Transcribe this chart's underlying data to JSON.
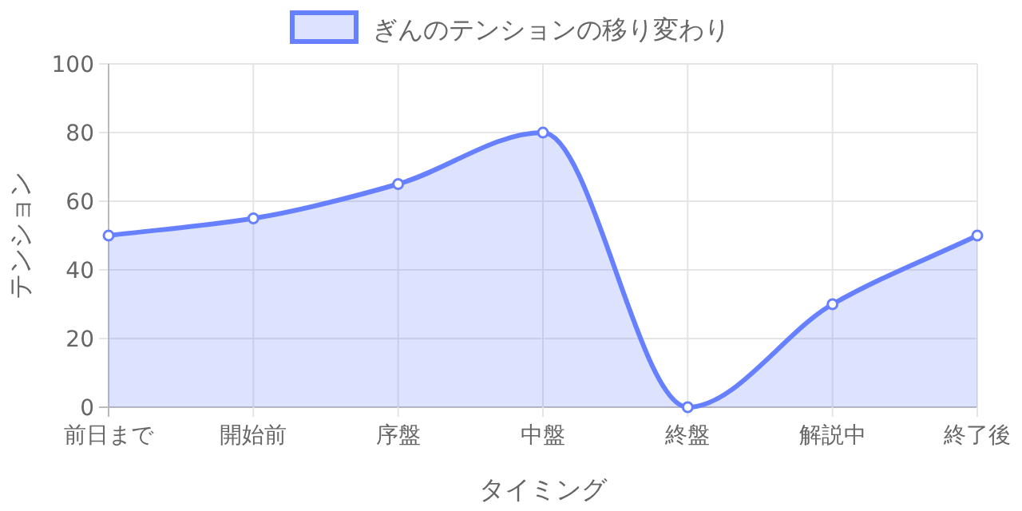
{
  "chart_data": {
    "type": "area",
    "xlabel": "タイミング",
    "ylabel": "テンション",
    "categories": [
      "前日まで",
      "開始前",
      "序盤",
      "中盤",
      "終盤",
      "解説中",
      "終了後"
    ],
    "series": [
      {
        "name": "ぎんのテンションの移り変わり",
        "color": "#6680ff",
        "values": [
          50,
          55,
          65,
          80,
          0,
          30,
          50
        ]
      }
    ],
    "ylim": [
      0,
      100
    ],
    "yticks": [
      0,
      20,
      40,
      60,
      80,
      100
    ],
    "grid": true,
    "legend": "top",
    "marker": "circle"
  }
}
